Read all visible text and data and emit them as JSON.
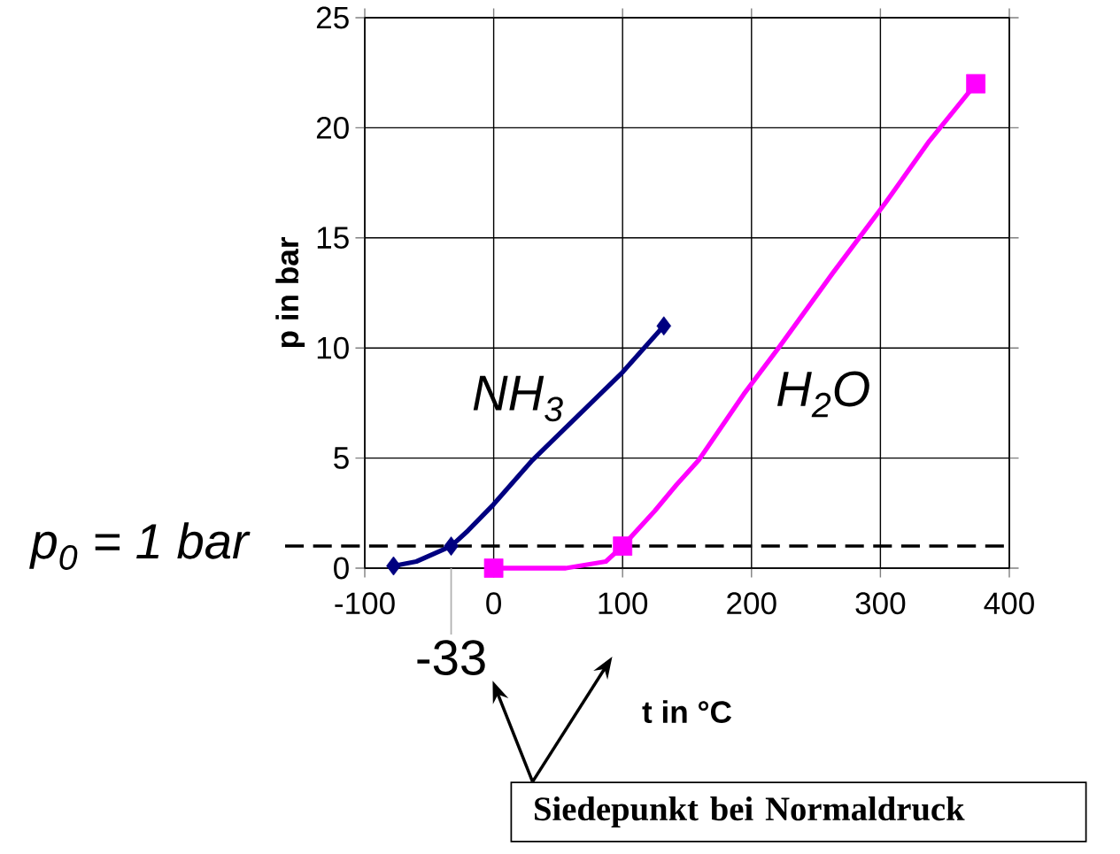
{
  "chart_data": {
    "type": "line",
    "xlabel": "t in °C",
    "ylabel": "p in bar",
    "xlim": [
      -100,
      400
    ],
    "xticks": [
      -100,
      0,
      100,
      200,
      300,
      400
    ],
    "ylim": [
      0,
      25
    ],
    "yticks": [
      0,
      5,
      10,
      15,
      20,
      25
    ],
    "grid": true,
    "series": [
      {
        "color": "#000080",
        "marker": "none",
        "x": [
          -77.7,
          -60,
          -33,
          -20,
          0,
          30,
          100,
          132
        ],
        "values": [
          0.1,
          0.3,
          1,
          1.7,
          2.9,
          4.9,
          8.9,
          11
        ]
      },
      {
        "color": "#ff00ff",
        "marker": "none",
        "x": [
          0,
          29,
          56,
          87,
          100,
          125,
          142,
          159,
          194,
          221,
          263,
          304,
          338,
          374
        ],
        "values": [
          0,
          0,
          0,
          0.3,
          1,
          2.6,
          3.8,
          4.9,
          7.9,
          10,
          13.4,
          16.6,
          19.4,
          22
        ]
      },
      {
        "type": "scatter",
        "color": "#000080",
        "marker": "diamond",
        "x": [
          -77.7,
          -33,
          132
        ],
        "values": [
          0.1,
          1,
          11
        ]
      },
      {
        "type": "scatter",
        "color": "#ff00ff",
        "marker": "square",
        "x": [
          0,
          100,
          374
        ],
        "values": [
          0,
          1,
          22
        ]
      }
    ],
    "ref_lines": [
      {
        "axis": "y",
        "value": 1,
        "label": "p$_{0}$ = 1 bar",
        "color": "#000000",
        "line_style": "dashed"
      },
      {
        "axis": "x",
        "value": -33,
        "label": "-33",
        "color": "#b0b0b0",
        "line_style": "solid"
      }
    ],
    "annotations": [
      "NH$_{3}$",
      "H$_{2}$O",
      "Siedepunkt bei Normaldruck"
    ]
  }
}
